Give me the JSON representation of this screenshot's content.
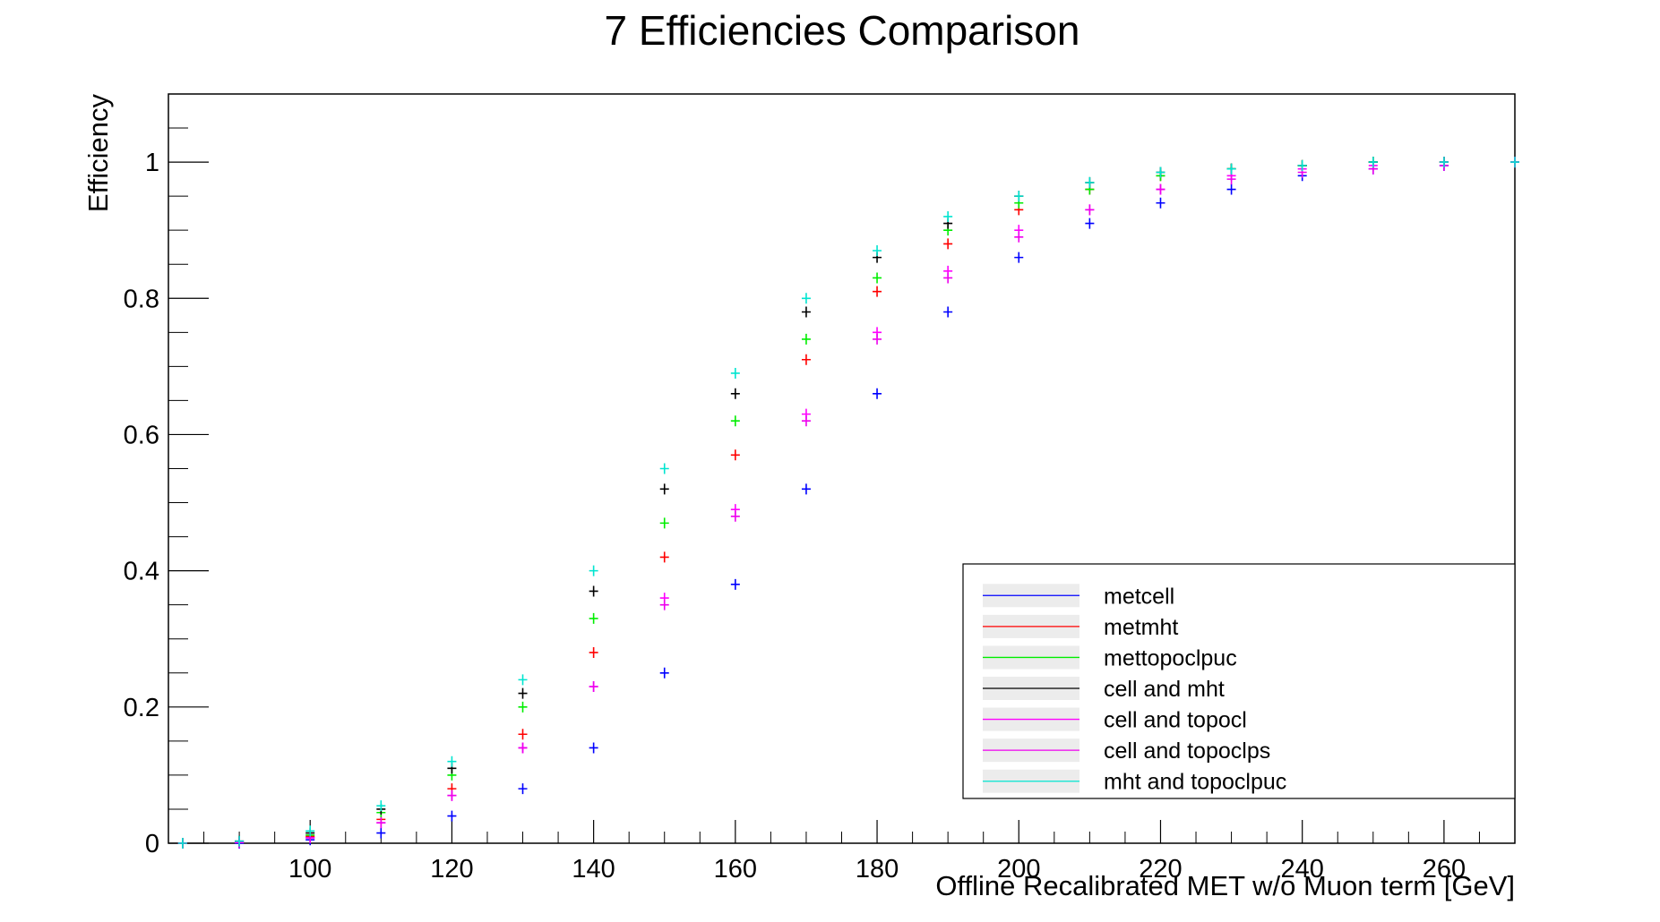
{
  "chart_data": {
    "type": "scatter",
    "title": "7 Efficiencies Comparison",
    "xlabel": "Offline Recalibrated MET w/o Muon term [GeV]",
    "ylabel": "Efficiency",
    "xlim": [
      80,
      270
    ],
    "ylim": [
      0,
      1.1
    ],
    "xticks": [
      "100",
      "120",
      "140",
      "160",
      "180",
      "200",
      "220",
      "240",
      "260"
    ],
    "yticks": [
      "0",
      "0.2",
      "0.4",
      "0.6",
      "0.8",
      "1"
    ],
    "legend_position": "bottom-right",
    "x": [
      82,
      90,
      100,
      110,
      120,
      130,
      140,
      150,
      160,
      170,
      180,
      190,
      200,
      210,
      220,
      230,
      240,
      250,
      260,
      270
    ],
    "series": [
      {
        "name": "metcell",
        "color": "#0000ff",
        "values": [
          0.0,
          0.0,
          0.005,
          0.015,
          0.04,
          0.08,
          0.14,
          0.25,
          0.38,
          0.52,
          0.66,
          0.78,
          0.86,
          0.91,
          0.94,
          0.96,
          0.98,
          0.99,
          0.995,
          1.0
        ]
      },
      {
        "name": "metmht",
        "color": "#ff0000",
        "values": [
          0.0,
          0.002,
          0.01,
          0.035,
          0.08,
          0.16,
          0.28,
          0.42,
          0.57,
          0.71,
          0.81,
          0.88,
          0.93,
          0.96,
          0.98,
          0.99,
          0.995,
          1.0,
          1.0,
          1.0
        ]
      },
      {
        "name": "mettopoclpuc",
        "color": "#00ee00",
        "values": [
          0.0,
          0.002,
          0.012,
          0.045,
          0.1,
          0.2,
          0.33,
          0.47,
          0.62,
          0.74,
          0.83,
          0.9,
          0.94,
          0.96,
          0.98,
          0.99,
          0.995,
          1.0,
          1.0,
          1.0
        ]
      },
      {
        "name": "cell and mht",
        "color": "#000000",
        "values": [
          0.0,
          0.003,
          0.015,
          0.05,
          0.11,
          0.22,
          0.37,
          0.52,
          0.66,
          0.78,
          0.86,
          0.91,
          0.95,
          0.97,
          0.985,
          0.99,
          0.995,
          1.0,
          1.0,
          1.0
        ]
      },
      {
        "name": "cell and topocl",
        "color": "#ff00ff",
        "values": [
          0.0,
          0.001,
          0.008,
          0.03,
          0.07,
          0.14,
          0.23,
          0.36,
          0.49,
          0.63,
          0.75,
          0.84,
          0.9,
          0.93,
          0.96,
          0.98,
          0.99,
          0.995,
          1.0,
          1.0
        ]
      },
      {
        "name": "cell and topoclps",
        "color": "#ee00ee",
        "values": [
          0.0,
          0.001,
          0.008,
          0.03,
          0.07,
          0.14,
          0.23,
          0.35,
          0.48,
          0.62,
          0.74,
          0.83,
          0.89,
          0.93,
          0.96,
          0.975,
          0.985,
          0.99,
          0.995,
          1.0
        ]
      },
      {
        "name": "mht and topoclpuc",
        "color": "#00e5d0",
        "values": [
          0.0,
          0.003,
          0.018,
          0.055,
          0.12,
          0.24,
          0.4,
          0.55,
          0.69,
          0.8,
          0.87,
          0.92,
          0.95,
          0.97,
          0.985,
          0.99,
          0.995,
          1.0,
          1.0,
          1.0
        ]
      }
    ]
  }
}
